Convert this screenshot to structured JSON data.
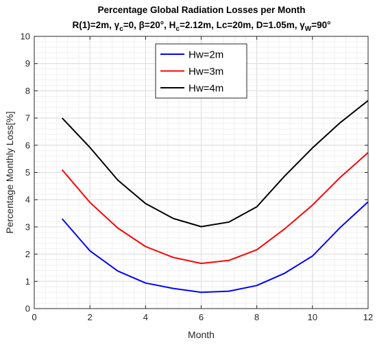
{
  "chart_data": {
    "type": "line",
    "title": "Percentage Global Radiation Losses per Month",
    "subtitle": "R(1)=2m, γc=0, β=20°, Hc=2.12m, Lc=20m, D=1.05m, γW=90°",
    "subtitle_parts": {
      "p1": "R(1)=2m, ",
      "gamma": "γ",
      "c": "c",
      "p2": "=0, ",
      "beta": "β",
      "p3": "=20°, H",
      "c2": "c",
      "p4": "=2.12m, Lc=20m, D=1.05m,  ",
      "gamma2": "γ",
      "w": "W",
      "p5": "=90°"
    },
    "xlabel": "Month",
    "ylabel": "Percentage Monthly Loss[%]",
    "xlim": [
      0,
      12
    ],
    "ylim": [
      0,
      10
    ],
    "x_ticks": [
      "0",
      "2",
      "4",
      "6",
      "8",
      "10",
      "12"
    ],
    "y_ticks": [
      "0",
      "1",
      "2",
      "3",
      "4",
      "5",
      "6",
      "7",
      "8",
      "9",
      "10"
    ],
    "grid": "on (major and minor)",
    "legend_position": "top-center",
    "x": [
      1,
      2,
      3,
      4,
      5,
      6,
      7,
      8,
      9,
      10,
      11,
      12
    ],
    "series": [
      {
        "name": "Hw=2m",
        "color": "#0000ff",
        "values": [
          3.3,
          2.12,
          1.38,
          0.94,
          0.74,
          0.6,
          0.64,
          0.85,
          1.3,
          1.93,
          2.98,
          3.92
        ]
      },
      {
        "name": "Hw=3m",
        "color": "#ff0000",
        "values": [
          5.1,
          3.9,
          2.96,
          2.28,
          1.88,
          1.66,
          1.77,
          2.16,
          2.93,
          3.8,
          4.82,
          5.73
        ]
      },
      {
        "name": "Hw=4m",
        "color": "#000000",
        "values": [
          7.0,
          5.92,
          4.72,
          3.86,
          3.31,
          3.01,
          3.18,
          3.74,
          4.87,
          5.9,
          6.83,
          7.64
        ]
      }
    ]
  }
}
